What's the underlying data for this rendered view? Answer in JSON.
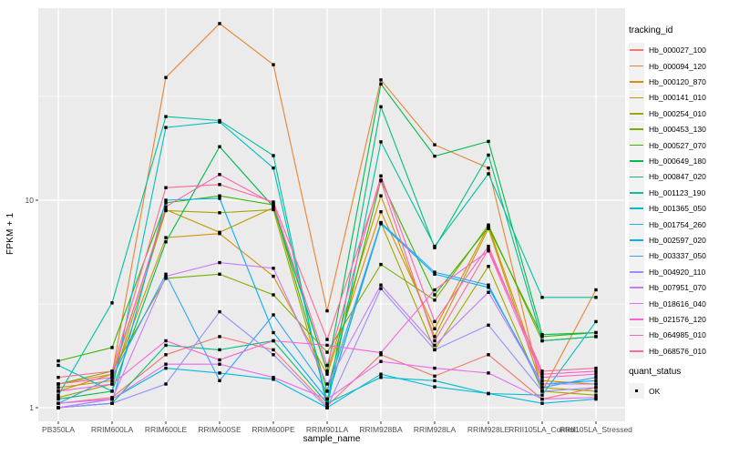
{
  "figure": {
    "y_axis_title": "FPKM + 1",
    "x_axis_title": "sample_name",
    "legend": {
      "tracking_title": "tracking_id",
      "quant_title": "quant_status",
      "quant_items": [
        {
          "label": "OK",
          "shape": "filled-black-square"
        }
      ]
    },
    "colors": {
      "page_bg": "#FFFFFF",
      "panel_bg": "#EBEBEB",
      "grid_major": "#FFFFFF",
      "grid_minor": "#FFFFFF",
      "axis_text": "#4D4D4D",
      "tick_mark": "#333333",
      "point": "#000000",
      "legend_key_bg": "#F2F2F2"
    }
  },
  "chart_data": {
    "type": "line",
    "title": "",
    "xlabel": "sample_name",
    "ylabel": "FPKM + 1",
    "x_scale": "categorical",
    "y_scale": "log10",
    "ylim": [
      0.86,
      83
    ],
    "y_ticks": [
      1,
      10
    ],
    "y_minor": [
      3.1623,
      31.623
    ],
    "grid": true,
    "legend_position": "right",
    "point_marker": "filled-black-square",
    "point_legend": {
      "title": "quant_status",
      "label": "OK"
    },
    "categories": [
      "PB350LA",
      "RRIM600LA",
      "RRIM600LE",
      "RRIM600SE",
      "RRIM600PE",
      "RRIM901LA",
      "RRIM928BA",
      "RRIM928LA",
      "RRIM928LE",
      "RRII105LA_Control",
      "RRII105LA_Stressed"
    ],
    "series": [
      {
        "name": "Hb_000027_100",
        "color": "#F8766D",
        "values": [
          1.05,
          1.12,
          1.8,
          2.2,
          1.9,
          1.02,
          1.8,
          1.42,
          1.8,
          1.1,
          1.25
        ]
      },
      {
        "name": "Hb_000094_120",
        "color": "#EA8331",
        "values": [
          1.3,
          1.45,
          39,
          71,
          45,
          2.93,
          38,
          18.5,
          14.3,
          1.2,
          3.7
        ]
      },
      {
        "name": "Hb_000120_870",
        "color": "#D89000",
        "values": [
          1.25,
          1.35,
          6.6,
          6.9,
          4.3,
          1.45,
          8.8,
          2.4,
          7.5,
          1.35,
          1.3
        ]
      },
      {
        "name": "Hb_000141_010",
        "color": "#C09B00",
        "values": [
          1.2,
          1.45,
          9.0,
          7.0,
          9.2,
          1.5,
          10.5,
          2.2,
          7.3,
          1.25,
          1.2
        ]
      },
      {
        "name": "Hb_000254_010",
        "color": "#A3A500",
        "values": [
          1.12,
          1.3,
          8.9,
          8.7,
          9.0,
          1.1,
          7.8,
          1.9,
          4.8,
          1.2,
          1.15
        ]
      },
      {
        "name": "Hb_000453_130",
        "color": "#7CAE00",
        "values": [
          1.3,
          1.5,
          4.2,
          4.4,
          3.5,
          1.85,
          4.9,
          3.3,
          7.6,
          2.1,
          2.2
        ]
      },
      {
        "name": "Hb_000527_070",
        "color": "#39B600",
        "values": [
          1.68,
          1.95,
          9.7,
          10.5,
          9.5,
          1.2,
          12.5,
          3.5,
          7.4,
          2.2,
          2.3
        ]
      },
      {
        "name": "Hb_000649_180",
        "color": "#00BB4E",
        "values": [
          1.1,
          1.2,
          6.3,
          18.1,
          9.3,
          1.5,
          36.3,
          16.3,
          19.2,
          2.25,
          2.3
        ]
      },
      {
        "name": "Hb_000847_020",
        "color": "#00BF7D",
        "values": [
          1.0,
          1.05,
          2.0,
          1.9,
          2.1,
          1.05,
          28.2,
          5.9,
          16.5,
          2.1,
          2.2
        ]
      },
      {
        "name": "Hb_001123_190",
        "color": "#00C1A3",
        "values": [
          1.15,
          3.2,
          25.3,
          24.2,
          16.4,
          1.0,
          19.1,
          6.0,
          13.4,
          3.4,
          3.4
        ]
      },
      {
        "name": "Hb_001365_050",
        "color": "#00BFC4",
        "values": [
          1.6,
          1.2,
          22.4,
          23.8,
          14.3,
          1.05,
          1.4,
          1.35,
          1.17,
          1.15,
          2.6
        ]
      },
      {
        "name": "Hb_001754_260",
        "color": "#00BAE0",
        "values": [
          1.0,
          1.1,
          1.55,
          1.47,
          1.37,
          1.0,
          1.45,
          1.26,
          1.17,
          1.05,
          1.1
        ]
      },
      {
        "name": "Hb_002597_020",
        "color": "#00B0F6",
        "values": [
          1.0,
          1.05,
          10.0,
          10.2,
          2.3,
          1.1,
          7.7,
          4.4,
          3.8,
          1.3,
          1.35
        ]
      },
      {
        "name": "Hb_003337_050",
        "color": "#35A2FF",
        "values": [
          1.05,
          1.4,
          4.4,
          1.35,
          2.8,
          1.2,
          7.8,
          4.5,
          3.9,
          1.25,
          1.4
        ]
      },
      {
        "name": "Hb_004920_110",
        "color": "#9590FF",
        "values": [
          1.0,
          1.05,
          1.3,
          2.9,
          1.8,
          1.0,
          3.75,
          1.9,
          2.5,
          1.2,
          1.25
        ]
      },
      {
        "name": "Hb_007951_070",
        "color": "#C77CFF",
        "values": [
          1.05,
          1.1,
          4.3,
          5.0,
          4.7,
          1.3,
          3.9,
          2.0,
          3.6,
          1.3,
          1.3
        ]
      },
      {
        "name": "Hb_018616_040",
        "color": "#E76BF3",
        "values": [
          1.0,
          1.1,
          1.62,
          1.62,
          1.4,
          1.1,
          1.67,
          1.55,
          1.47,
          1.1,
          1.12
        ]
      },
      {
        "name": "Hb_021576_120",
        "color": "#FA62DB",
        "values": [
          1.2,
          1.3,
          2.1,
          1.7,
          2.1,
          2.0,
          1.84,
          3.7,
          5.7,
          1.4,
          1.45
        ]
      },
      {
        "name": "Hb_064985_010",
        "color": "#FF62BC",
        "values": [
          1.3,
          1.4,
          9.3,
          13.3,
          9.6,
          1.6,
          13.1,
          2.6,
          6.0,
          1.45,
          1.5
        ]
      },
      {
        "name": "Hb_068576_010",
        "color": "#FF6A98",
        "values": [
          1.4,
          1.5,
          11.5,
          11.9,
          9.8,
          2.13,
          12.4,
          2.1,
          5.8,
          1.5,
          1.55
        ]
      }
    ]
  }
}
